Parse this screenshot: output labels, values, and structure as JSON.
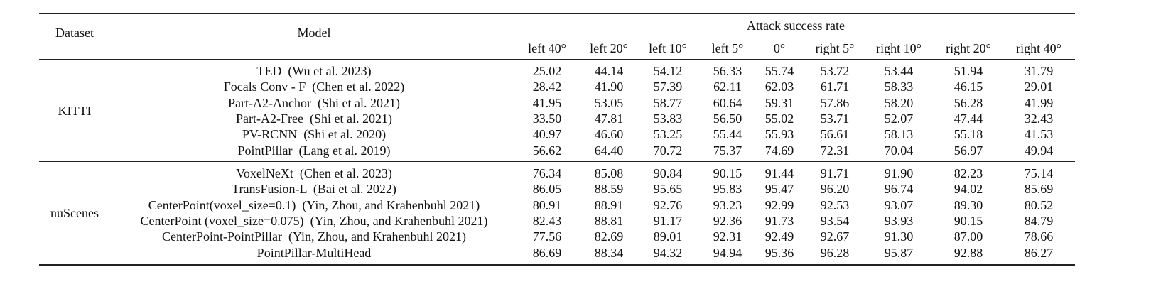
{
  "header": {
    "dataset": "Dataset",
    "model": "Model",
    "group": "Attack success rate",
    "columns": [
      "left 40°",
      "left 20°",
      "left 10°",
      "left 5°",
      "0°",
      "right 5°",
      "right 10°",
      "right 20°",
      "right 40°"
    ]
  },
  "groups": [
    {
      "name": "KITTI",
      "rows": [
        {
          "model": "TED  (Wu et al. 2023)",
          "values": [
            "25.02",
            "44.14",
            "54.12",
            "56.33",
            "55.74",
            "53.72",
            "53.44",
            "51.94",
            "31.79"
          ]
        },
        {
          "model": "Focals Conv - F  (Chen et al. 2022)",
          "values": [
            "28.42",
            "41.90",
            "57.39",
            "62.11",
            "62.03",
            "61.71",
            "58.33",
            "46.15",
            "29.01"
          ]
        },
        {
          "model": "Part-A2-Anchor  (Shi et al. 2021)",
          "values": [
            "41.95",
            "53.05",
            "58.77",
            "60.64",
            "59.31",
            "57.86",
            "58.20",
            "56.28",
            "41.99"
          ]
        },
        {
          "model": "Part-A2-Free  (Shi et al. 2021)",
          "values": [
            "33.50",
            "47.81",
            "53.83",
            "56.50",
            "55.02",
            "53.71",
            "52.07",
            "47.44",
            "32.43"
          ]
        },
        {
          "model": "PV-RCNN  (Shi et al. 2020)",
          "values": [
            "40.97",
            "46.60",
            "53.25",
            "55.44",
            "55.93",
            "56.61",
            "58.13",
            "55.18",
            "41.53"
          ]
        },
        {
          "model": "PointPillar  (Lang et al. 2019)",
          "values": [
            "56.62",
            "64.40",
            "70.72",
            "75.37",
            "74.69",
            "72.31",
            "70.04",
            "56.97",
            "49.94"
          ]
        }
      ]
    },
    {
      "name": "nuScenes",
      "rows": [
        {
          "model": "VoxelNeXt  (Chen et al. 2023)",
          "values": [
            "76.34",
            "85.08",
            "90.84",
            "90.15",
            "91.44",
            "91.71",
            "91.90",
            "82.23",
            "75.14"
          ]
        },
        {
          "model": "TransFusion-L  (Bai et al. 2022)",
          "values": [
            "86.05",
            "88.59",
            "95.65",
            "95.83",
            "95.47",
            "96.20",
            "96.74",
            "94.02",
            "85.69"
          ]
        },
        {
          "model": "CenterPoint(voxel_size=0.1)  (Yin, Zhou, and Krahenbuhl 2021)",
          "values": [
            "80.91",
            "88.91",
            "92.76",
            "93.23",
            "92.99",
            "92.53",
            "93.07",
            "89.30",
            "80.52"
          ]
        },
        {
          "model": "CenterPoint (voxel_size=0.075)  (Yin, Zhou, and Krahenbuhl 2021)",
          "values": [
            "82.43",
            "88.81",
            "91.17",
            "92.36",
            "91.73",
            "93.54",
            "93.93",
            "90.15",
            "84.79"
          ]
        },
        {
          "model": "CenterPoint-PointPillar  (Yin, Zhou, and Krahenbuhl 2021)",
          "values": [
            "77.56",
            "82.69",
            "89.01",
            "92.31",
            "92.49",
            "92.67",
            "91.30",
            "87.00",
            "78.66"
          ]
        },
        {
          "model": "PointPillar-MultiHead",
          "values": [
            "86.69",
            "88.34",
            "94.32",
            "94.94",
            "95.36",
            "96.28",
            "95.87",
            "92.88",
            "86.27"
          ]
        }
      ]
    }
  ]
}
